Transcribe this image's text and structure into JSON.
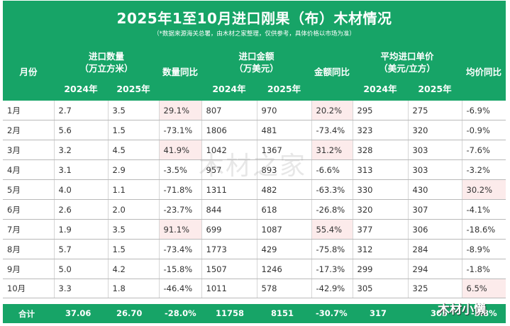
{
  "title": "2025年1至10月进口刚果（布）木材情况",
  "subtitle": "（*数据来源海关总署，由木材之家整理，仅供参考，具体价格以市场为准）",
  "headers": {
    "month": "月份",
    "qty_line1": "进口数量",
    "qty_line2": "（万立方米）",
    "qty_yoy": "数量同比",
    "amt_line1": "进口金额",
    "amt_line2": "（万美元）",
    "amt_yoy": "金额同比",
    "price_line1": "平均进口单价",
    "price_line2": "（美元/立方）",
    "price_yoy": "均价同比",
    "year_2024": "2024年",
    "year_2025": "2025年"
  },
  "rows": [
    {
      "month": "1月",
      "q24": "2.7",
      "q25": "3.5",
      "qyoy": "29.1%",
      "a24": "807",
      "a25": "970",
      "ayoy": "20.2%",
      "p24": "295",
      "p25": "275",
      "pyoy": "-6.9%"
    },
    {
      "month": "2月",
      "q24": "5.6",
      "q25": "1.5",
      "qyoy": "-73.1%",
      "a24": "1806",
      "a25": "481",
      "ayoy": "-73.4%",
      "p24": "323",
      "p25": "320",
      "pyoy": "-0.9%"
    },
    {
      "month": "3月",
      "q24": "3.2",
      "q25": "4.5",
      "qyoy": "41.9%",
      "a24": "1042",
      "a25": "1367",
      "ayoy": "31.2%",
      "p24": "328",
      "p25": "303",
      "pyoy": "-7.6%"
    },
    {
      "month": "4月",
      "q24": "3.1",
      "q25": "2.9",
      "qyoy": "-3.5%",
      "a24": "957",
      "a25": "893",
      "ayoy": "-6.6%",
      "p24": "313",
      "p25": "303",
      "pyoy": "-3.2%"
    },
    {
      "month": "5月",
      "q24": "4.0",
      "q25": "1.1",
      "qyoy": "-71.8%",
      "a24": "1311",
      "a25": "482",
      "ayoy": "-63.3%",
      "p24": "330",
      "p25": "430",
      "pyoy": "30.2%"
    },
    {
      "month": "6月",
      "q24": "2.6",
      "q25": "2.0",
      "qyoy": "-23.7%",
      "a24": "844",
      "a25": "618",
      "ayoy": "-26.8%",
      "p24": "320",
      "p25": "307",
      "pyoy": "-4.1%"
    },
    {
      "month": "7月",
      "q24": "1.9",
      "q25": "3.5",
      "qyoy": "91.1%",
      "a24": "699",
      "a25": "1087",
      "ayoy": "55.4%",
      "p24": "377",
      "p25": "306",
      "pyoy": "-18.6%"
    },
    {
      "month": "8月",
      "q24": "5.7",
      "q25": "1.5",
      "qyoy": "-73.4%",
      "a24": "1773",
      "a25": "429",
      "ayoy": "-75.8%",
      "p24": "312",
      "p25": "284",
      "pyoy": "-8.9%"
    },
    {
      "month": "9月",
      "q24": "5.0",
      "q25": "4.2",
      "qyoy": "-15.8%",
      "a24": "1507",
      "a25": "1246",
      "ayoy": "-17.3%",
      "p24": "299",
      "p25": "294",
      "pyoy": "-1.8%"
    },
    {
      "month": "10月",
      "q24": "3.3",
      "q25": "1.8",
      "qyoy": "-46.4%",
      "a24": "1011",
      "a25": "578",
      "ayoy": "-42.9%",
      "p24": "305",
      "p25": "325",
      "pyoy": "6.5%"
    }
  ],
  "total": {
    "label": "合计",
    "q24": "37.06",
    "q25": "26.70",
    "qyoy": "-28.0%",
    "a24": "11758",
    "a25": "8151",
    "ayoy": "-30.7%",
    "p24": "317",
    "p25": "305",
    "pyoy": "-3.8%"
  },
  "watermark": "木材之家",
  "brand": "木材小懒",
  "colors": {
    "header_green": "#17a467",
    "negative": "#1aa05a",
    "positive": "#e41b1b",
    "positive_cell_bg": "#fcebeb"
  }
}
